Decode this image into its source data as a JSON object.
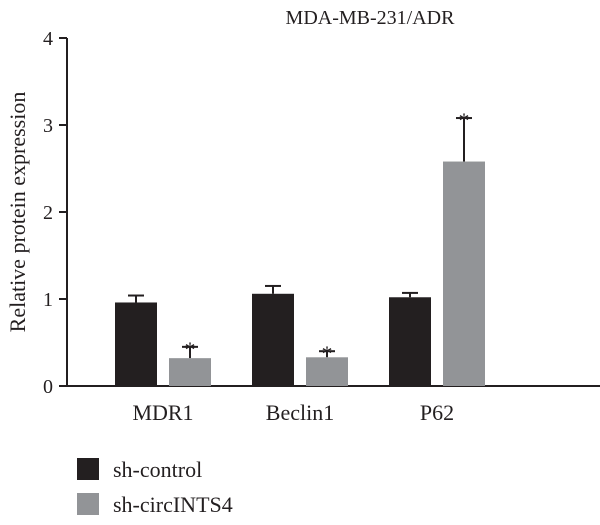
{
  "chart_data": {
    "type": "bar",
    "title": "MDA-MB-231/ADR",
    "ylabel": "Relative protein expression",
    "xlabel": "",
    "ylim": [
      0,
      4
    ],
    "yticks": [
      "0",
      "1",
      "2",
      "3",
      "4"
    ],
    "categories": [
      "MDR1",
      "Beclin1",
      "P62"
    ],
    "series": [
      {
        "name": "sh-control",
        "color": "#231f20",
        "values": [
          0.96,
          1.06,
          1.02
        ],
        "errors": [
          0.08,
          0.09,
          0.05
        ],
        "marks": [
          "",
          "",
          ""
        ]
      },
      {
        "name": "sh-circINTS4",
        "color": "#929497",
        "values": [
          0.32,
          0.33,
          2.58
        ],
        "errors": [
          0.13,
          0.07,
          0.5
        ],
        "marks": [
          "*",
          "*",
          "*"
        ]
      }
    ],
    "legend_position": "bottom-left"
  }
}
